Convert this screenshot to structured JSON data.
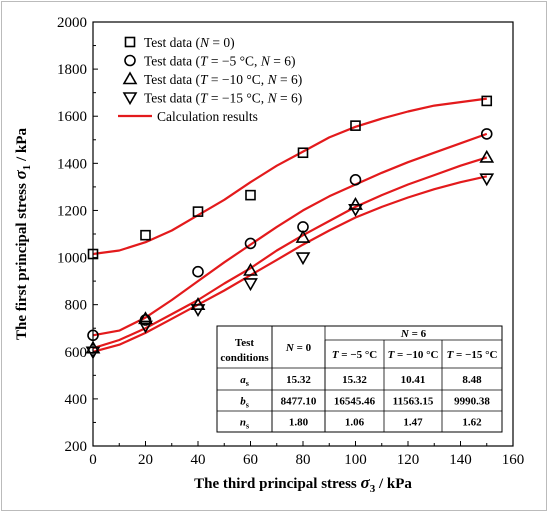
{
  "chart_data": {
    "type": "scatter",
    "xlabel": "The third principal stress",
    "xlabel_symbol": "σ",
    "xlabel_sub": "3",
    "xlabel_unit": " / kPa",
    "ylabel": "The first principal stress",
    "ylabel_symbol": "σ",
    "ylabel_sub": "1",
    "ylabel_unit": " / kPa",
    "xlim": [
      0,
      160
    ],
    "ylim": [
      200,
      2000
    ],
    "xticks": [
      "0",
      "20",
      "40",
      "60",
      "80",
      "100",
      "120",
      "140",
      "160"
    ],
    "yticks": [
      "200",
      "400",
      "600",
      "800",
      "1000",
      "1200",
      "1400",
      "1600",
      "1800",
      "2000"
    ],
    "legend_position": "top-left",
    "series": [
      {
        "name": "Test data (N = 0)",
        "legend": [
          "Test data (",
          "N",
          " = 0)"
        ],
        "marker": "square",
        "x": [
          0,
          20,
          40,
          60,
          80,
          100,
          150
        ],
        "y": [
          1015,
          1095,
          1195,
          1265,
          1445,
          1560,
          1665
        ]
      },
      {
        "name": "Test data (T = −5 °C, N = 6)",
        "legend": [
          "Test data (",
          "T",
          " = −5 °C, ",
          "N",
          " = 6)"
        ],
        "marker": "circle",
        "x": [
          0,
          20,
          40,
          60,
          80,
          100,
          150
        ],
        "y": [
          670,
          735,
          940,
          1060,
          1130,
          1330,
          1525
        ]
      },
      {
        "name": "Test data (T = −10 °C, N = 6)",
        "legend": [
          "Test data (",
          "T",
          " = −10 °C, ",
          "N",
          " = 6)"
        ],
        "marker": "triangle-up",
        "x": [
          0,
          20,
          40,
          60,
          80,
          100,
          150
        ],
        "y": [
          615,
          740,
          800,
          945,
          1085,
          1225,
          1425
        ]
      },
      {
        "name": "Test data (T = −15 °C, N = 6)",
        "legend": [
          "Test data (",
          "T",
          " = −15 °C, ",
          "N",
          " = 6)"
        ],
        "marker": "triangle-down",
        "x": [
          0,
          20,
          40,
          60,
          80,
          100,
          150
        ],
        "y": [
          600,
          710,
          780,
          890,
          1000,
          1205,
          1335
        ]
      }
    ],
    "curves": [
      {
        "name": "Calculation results",
        "x": [
          0,
          10,
          20,
          30,
          40,
          50,
          60,
          70,
          80,
          90,
          100,
          110,
          120,
          130,
          140,
          150
        ],
        "y": [
          1015,
          1030,
          1065,
          1115,
          1180,
          1245,
          1320,
          1390,
          1450,
          1510,
          1555,
          1590,
          1620,
          1645,
          1660,
          1675
        ]
      },
      {
        "name": "Calculation results",
        "x": [
          0,
          10,
          20,
          30,
          40,
          50,
          60,
          70,
          80,
          90,
          100,
          110,
          120,
          130,
          140,
          150
        ],
        "y": [
          670,
          690,
          745,
          820,
          900,
          980,
          1055,
          1130,
          1200,
          1260,
          1310,
          1360,
          1405,
          1445,
          1485,
          1525
        ]
      },
      {
        "name": "Calculation results",
        "x": [
          0,
          10,
          20,
          30,
          40,
          50,
          60,
          70,
          80,
          90,
          100,
          110,
          120,
          130,
          140,
          150
        ],
        "y": [
          615,
          650,
          700,
          760,
          820,
          890,
          955,
          1030,
          1095,
          1155,
          1215,
          1265,
          1310,
          1350,
          1390,
          1425
        ]
      },
      {
        "name": "Calculation results",
        "x": [
          0,
          10,
          20,
          30,
          40,
          50,
          60,
          70,
          80,
          90,
          100,
          110,
          120,
          130,
          140,
          150
        ],
        "y": [
          600,
          630,
          680,
          740,
          800,
          860,
          925,
          990,
          1055,
          1115,
          1170,
          1215,
          1255,
          1290,
          1320,
          1345
        ]
      }
    ],
    "legend_curve_label": "Calculation results",
    "curve_color": "#e31a1c",
    "marker_color": "#000000",
    "grid": false,
    "table": {
      "header_test": "Test",
      "header_conditions": "conditions",
      "header_n0": "N = 0",
      "header_n6": "N = 6",
      "temp_cols": [
        "T = −5 °C",
        "T = −10 °C",
        "T = −15 °C"
      ],
      "rows": [
        {
          "label": "a",
          "sub": "s",
          "values": [
            "15.32",
            "15.32",
            "10.41",
            "8.48"
          ]
        },
        {
          "label": "b",
          "sub": "s",
          "values": [
            "8477.10",
            "16545.46",
            "11563.15",
            "9990.38"
          ]
        },
        {
          "label": "n",
          "sub": "s",
          "values": [
            "1.80",
            "1.06",
            "1.47",
            "1.62"
          ]
        }
      ]
    }
  }
}
